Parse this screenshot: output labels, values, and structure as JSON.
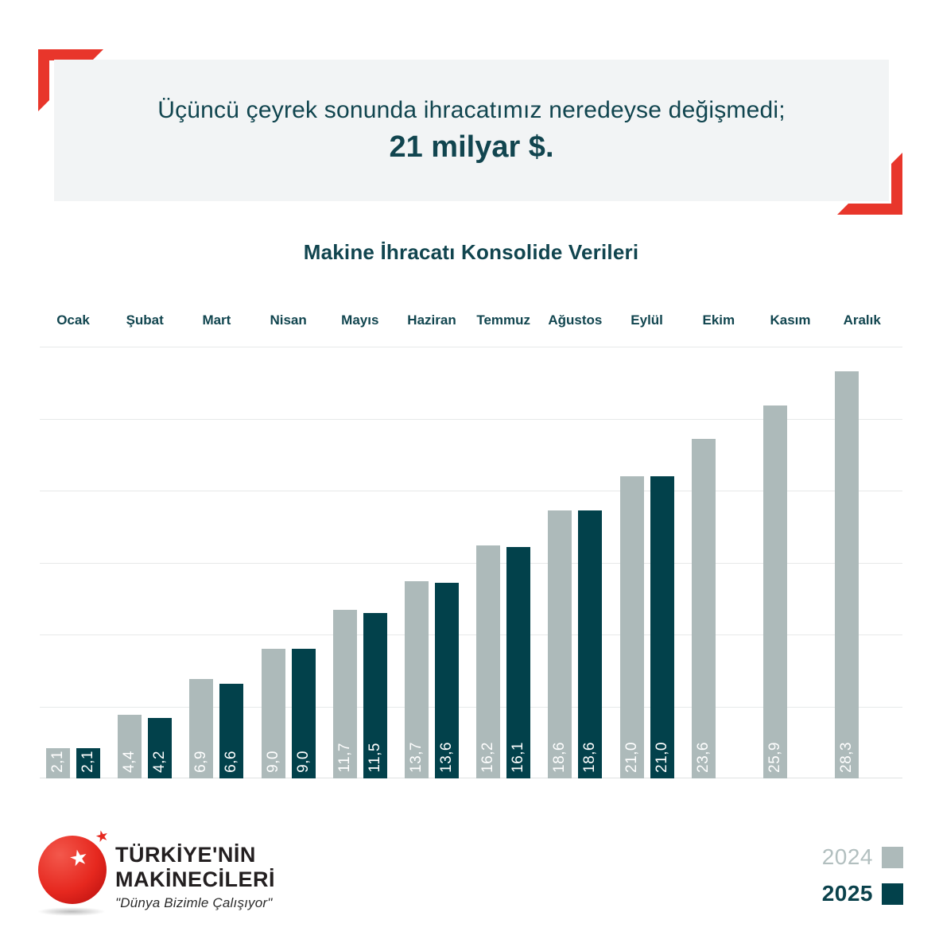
{
  "banner": {
    "line1": "Üçüncü çeyrek sonunda ihracatımız neredeyse değişmedi;",
    "line2": "21 milyar $."
  },
  "chart_data": {
    "type": "bar",
    "title": "Makine İhracatı Konsolide Verileri",
    "categories": [
      "Ocak",
      "Şubat",
      "Mart",
      "Nisan",
      "Mayıs",
      "Haziran",
      "Temmuz",
      "Ağustos",
      "Eylül",
      "Ekim",
      "Kasım",
      "Aralık"
    ],
    "series": [
      {
        "name": "2024",
        "color": "#adbaba",
        "values": [
          2.1,
          4.4,
          6.9,
          9.0,
          11.7,
          13.7,
          16.2,
          18.6,
          21.0,
          23.6,
          25.9,
          28.3
        ],
        "labels": [
          "2,1",
          "4,4",
          "6,9",
          "9,0",
          "11,7",
          "13,7",
          "16,2",
          "18,6",
          "21,0",
          "23,6",
          "25,9",
          "28,3"
        ]
      },
      {
        "name": "2025",
        "color": "#02414b",
        "values": [
          2.1,
          4.2,
          6.6,
          9.0,
          11.5,
          13.6,
          16.1,
          18.6,
          21.0,
          null,
          null,
          null
        ],
        "labels": [
          "2,1",
          "4,2",
          "6,6",
          "9,0",
          "11,5",
          "13,6",
          "16,1",
          "18,6",
          "21,0",
          "",
          "",
          ""
        ]
      }
    ],
    "ylim": [
      0,
      30
    ],
    "grid_step": 5,
    "grid": true,
    "y_axis_labels": false,
    "legend_position": "bottom-right",
    "value_labels": "rotated vertical, white, inside bar bottom"
  },
  "legend": {
    "items": [
      {
        "label": "2024",
        "color": "#adbaba",
        "text_color": "#b2bfbf"
      },
      {
        "label": "2025",
        "color": "#02414b",
        "text_color": "#0b424c"
      }
    ]
  },
  "logo": {
    "name_line1": "TÜRKİYE'NİN",
    "name_line2": "MAKİNECİLERİ",
    "tagline": "\"Dünya Bizimle Çalışıyor\"",
    "star_icon": "★"
  },
  "colors": {
    "accent_red": "#e8362b",
    "teal_text": "#11454f",
    "banner_bg": "#f2f4f5",
    "bar_2024": "#adbaba",
    "bar_2025": "#02414b",
    "grid_line": "#e7e9e9"
  }
}
